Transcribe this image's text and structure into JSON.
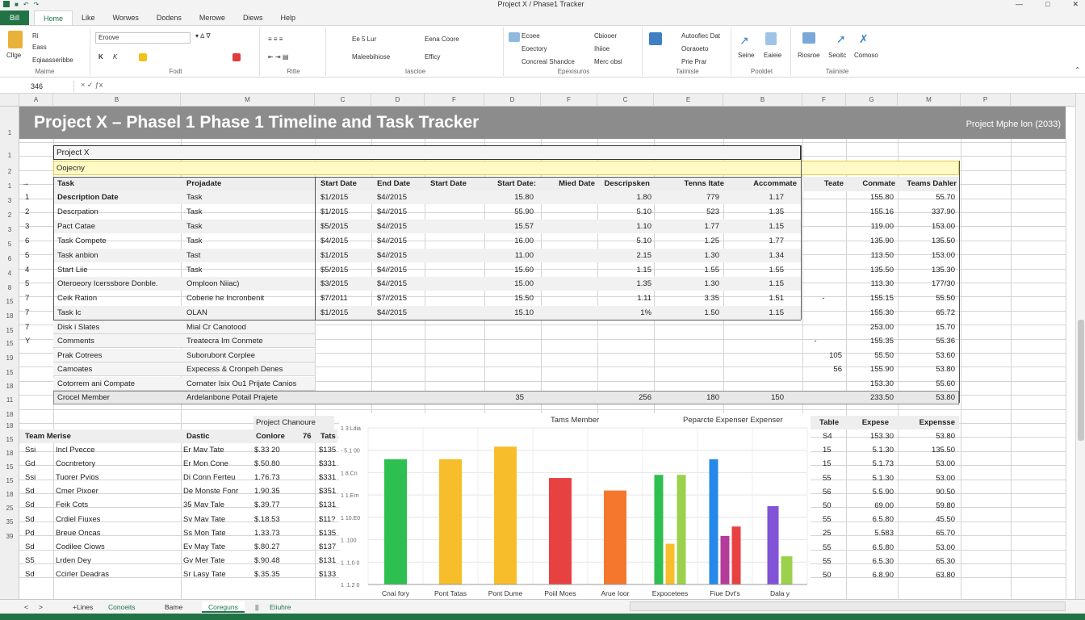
{
  "window": {
    "title": "Project X / Phase1 Tracker",
    "qat_icons": [
      "save-icon",
      "undo-icon",
      "redo-icon"
    ]
  },
  "tabs": [
    "Home",
    "Like",
    "Worwes",
    "Dodens",
    "Merowe",
    "Diews",
    "Help"
  ],
  "file_tab": "Bill",
  "ribbon": {
    "clipboard": {
      "label": "Maime",
      "paste": "Cllge",
      "cut": "Ri",
      "copy": "Eass",
      "format": "Eqiaasseribbe"
    },
    "font": {
      "label": "Fodt",
      "font_name": "Eroove",
      "bold": "K",
      "italic": "K"
    },
    "alignment": {
      "label": "Ritte"
    },
    "number": {
      "label": "Iascloe",
      "format": "Ee 5 Lur",
      "sub": "Maleebihiose"
    },
    "styles": {
      "label": "",
      "a": "Eena Coore",
      "b": "Efficy"
    },
    "cells": {
      "label": "Epexisuros",
      "a": "Ecoee",
      "b": "Eoectory",
      "c": "Concreal Shandce",
      "d": "Cbiooer",
      "e": "Ihiioe",
      "f": "Merc obsl"
    },
    "editing": {
      "label": "Taiinisle",
      "a": "Autoofiec Dat",
      "b": "Ooraoeto",
      "c": "Prie Prar"
    },
    "ideas": {
      "label": "Pooldet",
      "a": "Seine",
      "b": "Eaieie",
      "c": "Riosroe",
      "d": "Seoitc",
      "e": "Comoso"
    }
  },
  "formula_bar": {
    "name_box": "346",
    "content": ""
  },
  "columns": [
    "A",
    "B",
    "M",
    "C",
    "D",
    "F",
    "D",
    "F",
    "C",
    "E",
    "B",
    "F",
    "G",
    "M",
    "P"
  ],
  "banner": {
    "title": "Project X – Phasel 1 Phase 1 Timeline and Task Tracker",
    "right": "Project Mphe lon (2033)"
  },
  "project_label": "Project X",
  "subtitle_cell": "Oojecny",
  "task_table": {
    "headers": [
      "Task",
      "Projadate",
      "Start Date",
      "End Date",
      "Start Date",
      "Start Date:",
      "Mied Date",
      "Descripsken",
      "Tenns Itate",
      "Accommate",
      "Teate",
      "Conmate",
      "Teams Dahler"
    ],
    "rows": [
      [
        "1",
        "Description Date",
        "Task",
        "$1/2015",
        "$4//2015",
        "",
        "15.80",
        "",
        "1.80",
        "779",
        "1.17",
        "",
        "155.80",
        "55.70"
      ],
      [
        "2",
        "Descrpation",
        "Task",
        "$1/2015",
        "$4//2015",
        "",
        "55.90",
        "",
        "5.10",
        "523",
        "1.35",
        "",
        "155.16",
        "337.90"
      ],
      [
        "3",
        "Pact Catae",
        "Task",
        "$5/2015",
        "$4//2015",
        "",
        "15.57",
        "",
        "1.10",
        "1.77",
        "1.15",
        "",
        "119.00",
        "153.00"
      ],
      [
        "6",
        "Task Compete",
        "Task",
        "$4/2015",
        "$4//2015",
        "",
        "16.00",
        "",
        "5.10",
        "1.25",
        "1.77",
        "",
        "135.90",
        "135.50"
      ],
      [
        "5",
        "Task anbion",
        "Tast",
        "$1/2015",
        "$4//2015",
        "",
        "11.00",
        "",
        "2.15",
        "1.30",
        "1.34",
        "",
        "113.50",
        "153.00"
      ],
      [
        "4",
        "Start Liie",
        "Task",
        "$5/2015",
        "$4//2015",
        "",
        "15.60",
        "",
        "1.15",
        "1.55",
        "1.55",
        "",
        "135.50",
        "135.30"
      ],
      [
        "5",
        "Oteroeory Icerssbore Donble.",
        "Omploon Niiac)",
        "$3/2015",
        "$4//2015",
        "",
        "15.00",
        "",
        "1.35",
        "1.30",
        "1.15",
        "",
        "113.30",
        "177/30"
      ],
      [
        "7",
        "Ceik Ration",
        "Coberie he Incronbenit",
        "$7/2011",
        "$7//2015",
        "",
        "15.50",
        "",
        "1.11",
        "3.35",
        "1.51",
        "-",
        "155.15",
        "55.50"
      ],
      [
        "7",
        "Task Ic",
        "OLAN",
        "$1/2015",
        "$4//2015",
        "",
        "15.10",
        "",
        "1%",
        "1.50",
        "1.15",
        "",
        "155.30",
        "65.72"
      ]
    ],
    "extra_rows": [
      [
        "7",
        "Disk i Slates",
        "Mial Cr Canotood",
        "",
        "",
        "253.00",
        "15.70"
      ],
      [
        "Y",
        "Comments",
        "Treatecra Im Conmete",
        "-",
        "",
        "155.35",
        "55.36"
      ],
      [
        "",
        "Prak Cotrees",
        "Suborubont Corplee",
        "",
        "105",
        "55.50",
        "53.60"
      ],
      [
        "",
        "Camoates",
        "Expecess & Cronpeh Denes",
        "",
        "56",
        "155.90",
        "53.80"
      ],
      [
        "",
        "Cotorrem ani Compate",
        "Cornater Isix Ou1 Prijate Canios",
        "",
        "",
        "153.30",
        "55.60"
      ]
    ],
    "total_row": [
      "",
      "Crocel Member",
      "Ardelanbone Potail Prajete",
      "35",
      "256",
      "180",
      "150",
      "233.50",
      "53.80"
    ]
  },
  "team_table": {
    "header_above": "Project Chanoure",
    "headers": [
      "Team Merise",
      "Dastic",
      "Conlore",
      "76",
      "Tats"
    ],
    "rows": [
      [
        "Ssi",
        "Incl Pvecce",
        "Er Mav Tate",
        "$.33 20",
        "$135"
      ],
      [
        "Gd",
        "Cocntretory",
        "Er Mon Cone",
        "$.50.80",
        "$331"
      ],
      [
        "Ssi",
        "Tuorer Pvios",
        "Di Conn Ferteu",
        "1.76.73",
        "$331"
      ],
      [
        "Sd",
        "Cmer Pixoer",
        "De Monste Fonr",
        "1.90.35",
        "$351"
      ],
      [
        "Sd",
        "Feik Cots",
        "35 Mav Tale",
        "$.39.77",
        "$131"
      ],
      [
        "Sd",
        "Crdiel Fiuxes",
        "Sv Mav Tate",
        "$.18.53",
        "$11?"
      ],
      [
        "Pd",
        "Breue Oncas",
        "Ss Mon Tate",
        "1.33.73",
        "$135"
      ],
      [
        "Sd",
        "Codilee Ciows",
        "Ev May Tate",
        "$.80.27",
        "$137"
      ],
      [
        "S5",
        "Lrden Dey",
        "Gv Mer Tate",
        "$.90.48",
        "$131"
      ],
      [
        "Sd",
        "Ccirler Deadras",
        "Sr Lasy Tate",
        "$.35.35",
        "$133"
      ]
    ]
  },
  "expense_table": {
    "headers": [
      "Table",
      "Expese",
      "Expensse"
    ],
    "rows": [
      [
        "S4",
        "153.30",
        "53.80"
      ],
      [
        "15",
        "5.1.30",
        "135.50"
      ],
      [
        "15",
        "5.1.73",
        "53.00"
      ],
      [
        "55",
        "5.1.30",
        "53.00"
      ],
      [
        "56",
        "5.5.90",
        "90.50"
      ],
      [
        "50",
        "69.00",
        "59.80"
      ],
      [
        "55",
        "6.5.80",
        "45.50"
      ],
      [
        "25",
        "5.583",
        "65.70"
      ],
      [
        "55",
        "6.5.80",
        "53.00"
      ],
      [
        "55",
        "6.5.30",
        "65.30"
      ],
      [
        "50",
        "6.8.90",
        "63.80"
      ]
    ]
  },
  "chart_data": {
    "type": "bar",
    "title_left": "Tams Member",
    "title_right": "Peparcte Expenser Expenser",
    "ylabels": [
      "1 3 Ldia",
      "- 5.1 00",
      "1 8.Cn",
      "1 1.Ern",
      "1 10.E0",
      "1 .100",
      "1 .1.0 0",
      "1 .1.2 0"
    ],
    "categories": [
      "Cnai fory",
      "Pont Tatas",
      "Pont Dume",
      "Poiil Moes",
      "Arue Ioor",
      "Expocetees",
      "Fiue Dvt's",
      "Dala y"
    ],
    "ylim": [
      0,
      100
    ],
    "bars": [
      {
        "category": 0,
        "value": 80,
        "color": "#2dbf4f"
      },
      {
        "category": 1,
        "value": 80,
        "color": "#f7bd2a"
      },
      {
        "category": 2,
        "value": 88,
        "color": "#f7bd2a"
      },
      {
        "category": 3,
        "value": 68,
        "color": "#e84141"
      },
      {
        "category": 4,
        "value": 60,
        "color": "#f5772d"
      },
      {
        "category": 5,
        "value": 70,
        "color": "#2dbf4f"
      },
      {
        "category": 5,
        "value": 26,
        "color": "#f7bd2a"
      },
      {
        "category": 5,
        "value": 70,
        "color": "#9bd14c"
      },
      {
        "category": 6,
        "value": 80,
        "color": "#2489e8"
      },
      {
        "category": 6,
        "value": 31,
        "color": "#b43b99"
      },
      {
        "category": 6,
        "value": 37,
        "color": "#e84141"
      },
      {
        "category": 7,
        "value": 50,
        "color": "#8153d6"
      },
      {
        "category": 7,
        "value": 18,
        "color": "#9bd14c"
      }
    ]
  },
  "sheet_tabs": [
    "<",
    ">",
    "+Lines",
    "Conoeits",
    "Bame",
    "Coreguns",
    "||",
    "Eiiuhre"
  ],
  "colors": {
    "accent": "#217346",
    "banner": "#8c8c8c",
    "highlight": "#fff9c4"
  }
}
